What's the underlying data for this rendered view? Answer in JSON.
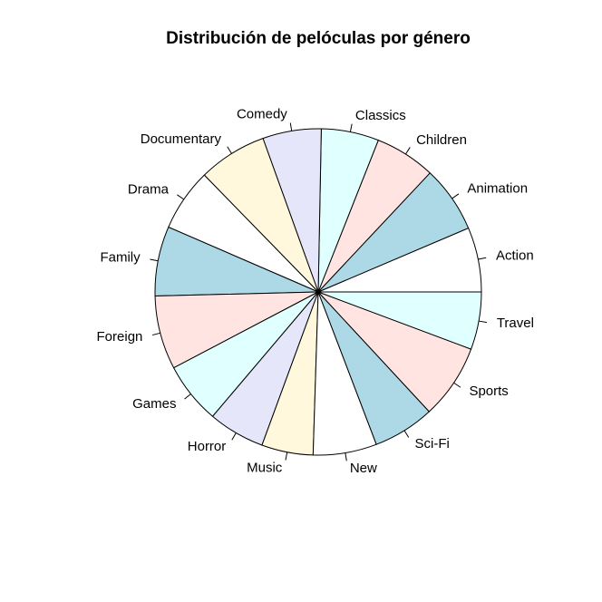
{
  "chart_data": {
    "type": "pie",
    "title": "Distribución de pelóculas por género",
    "start": "3 o'clock",
    "direction": "counterclockwise",
    "slices": [
      {
        "label": "Action",
        "value": 64,
        "color": "#FFFFFF"
      },
      {
        "label": "Animation",
        "value": 66,
        "color": "#ADD8E6"
      },
      {
        "label": "Children",
        "value": 60,
        "color": "#FFE4E1"
      },
      {
        "label": "Classics",
        "value": 57,
        "color": "#E0FFFF"
      },
      {
        "label": "Comedy",
        "value": 58,
        "color": "#E6E6FA"
      },
      {
        "label": "Documentary",
        "value": 68,
        "color": "#FFF8DC"
      },
      {
        "label": "Drama",
        "value": 62,
        "color": "#FFFFFF"
      },
      {
        "label": "Family",
        "value": 69,
        "color": "#ADD8E6"
      },
      {
        "label": "Foreign",
        "value": 73,
        "color": "#FFE4E1"
      },
      {
        "label": "Games",
        "value": 61,
        "color": "#E0FFFF"
      },
      {
        "label": "Horror",
        "value": 56,
        "color": "#E6E6FA"
      },
      {
        "label": "Music",
        "value": 51,
        "color": "#FFF8DC"
      },
      {
        "label": "New",
        "value": 63,
        "color": "#FFFFFF"
      },
      {
        "label": "Sci-Fi",
        "value": 61,
        "color": "#ADD8E6"
      },
      {
        "label": "Sports",
        "value": 74,
        "color": "#FFE4E1"
      },
      {
        "label": "Travel",
        "value": 57,
        "color": "#E0FFFF"
      }
    ]
  }
}
